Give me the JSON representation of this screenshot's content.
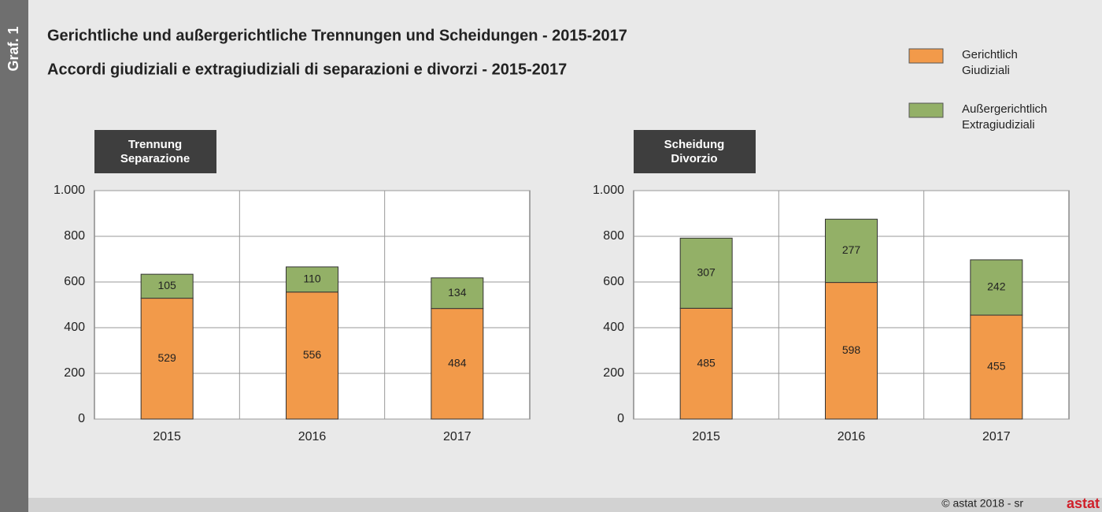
{
  "header": {
    "tag": "Graf. 1",
    "titles": [
      "Gerichtliche und außergerichtliche Trennungen und Scheidungen - 2015-2017",
      "Accordi giudiziali e extragiudiziali di separazioni e divorzi - 2015-2017"
    ]
  },
  "legend_position": "top-right",
  "footer": {
    "credit": "© astat 2018 - sr",
    "logo": "astat"
  },
  "chart_data": [
    {
      "type": "bar",
      "stacked": true,
      "title": [
        "Trennung",
        "Separazione"
      ],
      "categories": [
        "2015",
        "2016",
        "2017"
      ],
      "series": [
        {
          "name": [
            "Gerichtlich",
            "Giudiziali"
          ],
          "color": "#f29a4a",
          "values": [
            529,
            556,
            484
          ]
        },
        {
          "name": [
            "Außergerichtlich",
            "Extragiudiziali"
          ],
          "color": "#93b067",
          "values": [
            105,
            110,
            134
          ]
        }
      ],
      "ylim": [
        0,
        1000
      ],
      "yticks": [
        0,
        200,
        400,
        600,
        800,
        {
          "value": 1000,
          "label": "1.000"
        }
      ],
      "grid": true
    },
    {
      "type": "bar",
      "stacked": true,
      "title": [
        "Scheidung",
        "Divorzio"
      ],
      "categories": [
        "2015",
        "2016",
        "2017"
      ],
      "series": [
        {
          "color": "#f29a4a",
          "values": [
            485,
            598,
            455
          ]
        },
        {
          "color": "#93b067",
          "values": [
            307,
            277,
            242
          ]
        }
      ],
      "ylim": [
        0,
        1000
      ],
      "yticks": [
        0,
        200,
        400,
        600,
        800,
        {
          "value": 1000,
          "label": "1.000"
        }
      ],
      "grid": true
    }
  ]
}
